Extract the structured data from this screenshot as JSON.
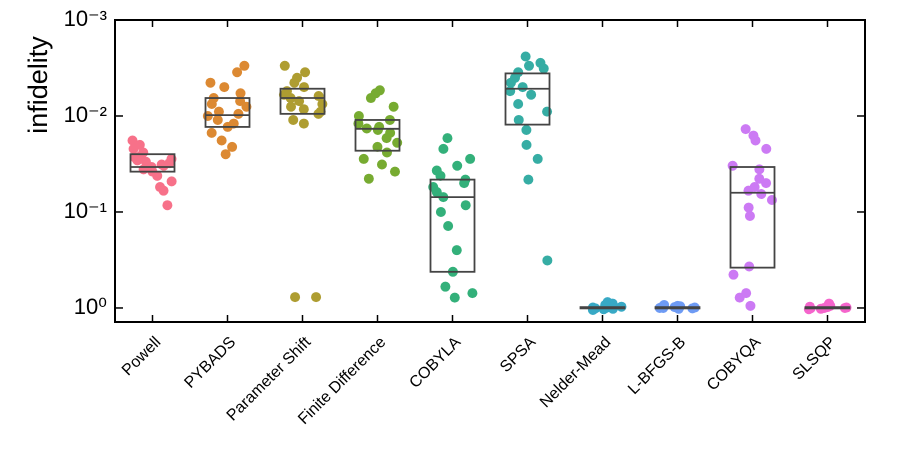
{
  "chart_data": {
    "type": "box",
    "ylabel": "infidelity",
    "yscale": "log",
    "yinverted": true,
    "ylim": [
      0.001,
      1.4
    ],
    "yticks": [
      {
        "value": 0.001,
        "label": "10⁻³"
      },
      {
        "value": 0.01,
        "label": "10⁻²"
      },
      {
        "value": 0.1,
        "label": "10⁻¹"
      },
      {
        "value": 1,
        "label": "10⁰"
      }
    ],
    "categories": [
      "Powell",
      "PYBADS",
      "Parameter Shift",
      "Finite Difference",
      "COBYLA",
      "SPSA",
      "Nelder-Mead",
      "L-BFGS-B",
      "COBYQA",
      "SLSQP"
    ],
    "colors": [
      "#f77189",
      "#dc8932",
      "#ae9d31",
      "#77ab31",
      "#33b07a",
      "#36ada4",
      "#38a9c5",
      "#6e9bf4",
      "#cc7af4",
      "#f565cc"
    ],
    "boxes": [
      {
        "q1": 0.025,
        "median": 0.034,
        "q3": 0.038,
        "points": [
          0.018,
          0.02,
          0.022,
          0.024,
          0.026,
          0.027,
          0.028,
          0.029,
          0.03,
          0.031,
          0.032,
          0.033,
          0.034,
          0.036,
          0.038,
          0.042,
          0.048,
          0.055,
          0.06,
          0.085
        ]
      },
      {
        "q1": 0.0065,
        "median": 0.0098,
        "q3": 0.013,
        "points": [
          0.003,
          0.0035,
          0.0045,
          0.005,
          0.0058,
          0.0065,
          0.007,
          0.0075,
          0.008,
          0.009,
          0.0095,
          0.01,
          0.011,
          0.012,
          0.013,
          0.015,
          0.018,
          0.021,
          0.025
        ]
      },
      {
        "q1": 0.0052,
        "median": 0.0065,
        "q3": 0.0095,
        "points": [
          0.003,
          0.0035,
          0.004,
          0.0045,
          0.005,
          0.0055,
          0.006,
          0.0062,
          0.0065,
          0.007,
          0.0075,
          0.008,
          0.0085,
          0.009,
          0.0095,
          0.011,
          0.012,
          0.77,
          0.77
        ]
      },
      {
        "q1": 0.011,
        "median": 0.0136,
        "q3": 0.023,
        "points": [
          0.0054,
          0.0058,
          0.0065,
          0.008,
          0.01,
          0.011,
          0.012,
          0.013,
          0.0135,
          0.014,
          0.015,
          0.017,
          0.019,
          0.021,
          0.024,
          0.028,
          0.032,
          0.038,
          0.045
        ]
      },
      {
        "q1": 0.046,
        "median": 0.07,
        "q3": 0.42,
        "points": [
          0.017,
          0.022,
          0.028,
          0.033,
          0.037,
          0.042,
          0.046,
          0.05,
          0.055,
          0.062,
          0.07,
          0.085,
          0.1,
          0.14,
          0.25,
          0.42,
          0.6,
          0.7,
          0.78
        ]
      },
      {
        "q1": 0.0036,
        "median": 0.0052,
        "q3": 0.0123,
        "points": [
          0.0024,
          0.0028,
          0.003,
          0.0032,
          0.0035,
          0.004,
          0.0045,
          0.005,
          0.0055,
          0.006,
          0.0075,
          0.009,
          0.011,
          0.014,
          0.02,
          0.028,
          0.046,
          0.32
        ]
      },
      {
        "q1": 0.98,
        "median": 1.0,
        "q3": 1.01,
        "points": [
          0.87,
          0.9,
          0.93,
          0.95,
          0.97,
          0.98,
          0.99,
          1.0,
          1.0,
          1.01,
          1.02,
          1.03,
          1.05
        ]
      },
      {
        "q1": 0.98,
        "median": 1.0,
        "q3": 1.01,
        "points": [
          0.93,
          0.95,
          0.96,
          0.97,
          0.98,
          0.99,
          1.0,
          1.0,
          1.01,
          1.02
        ]
      },
      {
        "q1": 0.034,
        "median": 0.063,
        "q3": 0.38,
        "points": [
          0.0137,
          0.016,
          0.018,
          0.022,
          0.033,
          0.036,
          0.045,
          0.05,
          0.055,
          0.06,
          0.065,
          0.075,
          0.09,
          0.11,
          0.37,
          0.45,
          0.7,
          0.78,
          0.95
        ]
      },
      {
        "q1": 0.98,
        "median": 1.0,
        "q3": 1.01,
        "points": [
          0.9,
          0.93,
          0.95,
          0.97,
          0.98,
          0.99,
          1.0,
          1.0,
          1.01,
          1.02,
          1.03
        ]
      }
    ]
  }
}
